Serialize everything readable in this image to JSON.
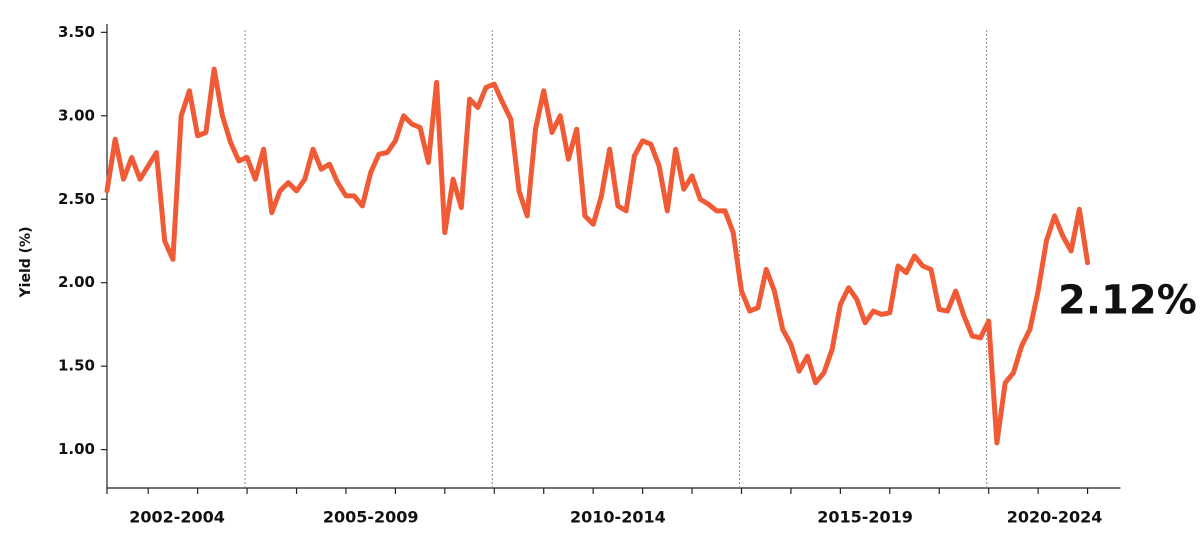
{
  "chart_data": {
    "type": "line",
    "y_label": "Yield (%)",
    "color": "#f05a35",
    "ylim": [
      0.77,
      3.55
    ],
    "yticks": [
      {
        "value": 1.0,
        "label": "1.00"
      },
      {
        "value": 1.5,
        "label": "1.50"
      },
      {
        "value": 2.0,
        "label": "2.00"
      },
      {
        "value": 2.5,
        "label": "2.50"
      },
      {
        "value": 3.0,
        "label": "3.00"
      },
      {
        "value": 3.5,
        "label": "3.50"
      }
    ],
    "groups": [
      {
        "label": "2002-2004",
        "values": [
          2.55,
          2.86,
          2.62,
          2.75,
          2.62,
          2.7,
          2.78,
          2.25,
          2.14,
          3.0,
          3.15,
          2.88,
          2.9,
          3.28,
          3.0,
          2.84,
          2.73
        ]
      },
      {
        "label": "2005-2009",
        "values": [
          2.75,
          2.62,
          2.8,
          2.42,
          2.55,
          2.6,
          2.55,
          2.62,
          2.8,
          2.68,
          2.71,
          2.6,
          2.52,
          2.52,
          2.46,
          2.66,
          2.77,
          2.78,
          2.85,
          3.0,
          2.95,
          2.93,
          2.72,
          3.2,
          2.3,
          2.62,
          2.45,
          3.1,
          3.05,
          3.17
        ]
      },
      {
        "label": "2010-2014",
        "values": [
          3.19,
          3.08,
          2.98,
          2.55,
          2.4,
          2.92,
          3.15,
          2.9,
          3.0,
          2.74,
          2.92,
          2.4,
          2.35,
          2.52,
          2.8,
          2.46,
          2.43,
          2.76,
          2.85,
          2.83,
          2.7,
          2.43,
          2.8,
          2.56,
          2.64,
          2.5,
          2.47,
          2.43,
          2.43,
          2.3
        ]
      },
      {
        "label": "2015-2019",
        "values": [
          1.95,
          1.83,
          1.85,
          2.08,
          1.95,
          1.72,
          1.63,
          1.47,
          1.56,
          1.4,
          1.46,
          1.6,
          1.87,
          1.97,
          1.9,
          1.76,
          1.83,
          1.81,
          1.82,
          2.1,
          2.06,
          2.16,
          2.1,
          2.08,
          1.84,
          1.83,
          1.95,
          1.8,
          1.68,
          1.67
        ]
      },
      {
        "label": "2020-2024",
        "values": [
          1.77,
          1.04,
          1.4,
          1.46,
          1.62,
          1.72,
          1.95,
          2.25,
          2.4,
          2.28,
          2.19,
          2.44,
          2.12
        ]
      }
    ],
    "end_value_label": "2.12%"
  }
}
